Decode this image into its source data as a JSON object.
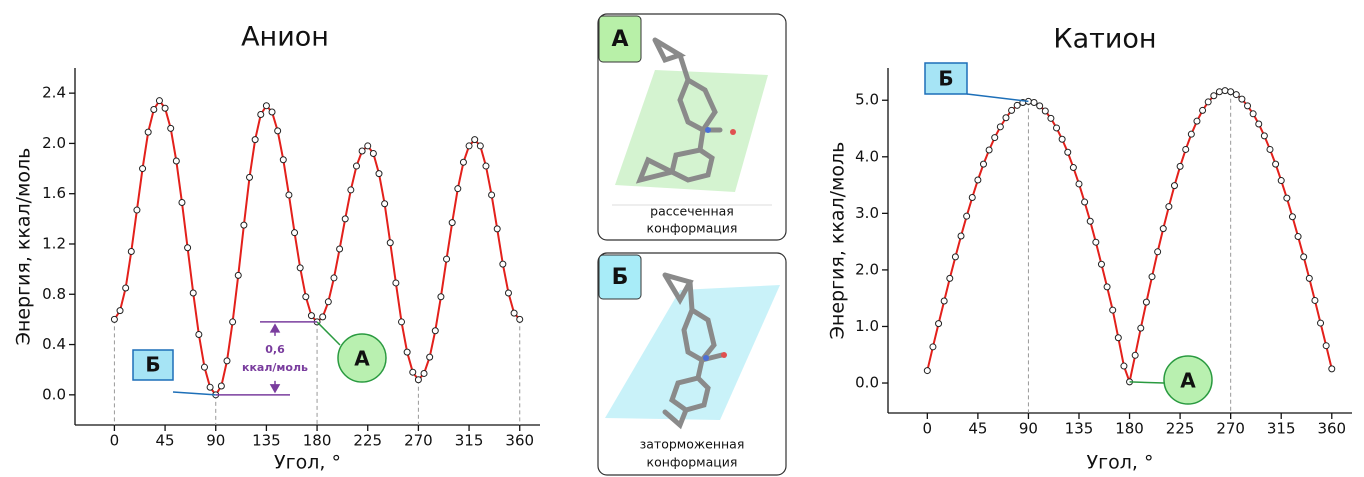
{
  "chart_data": [
    {
      "type": "line",
      "title": "Анион",
      "x_label": "Угол, °",
      "y_label": "Энергия, ккал/моль",
      "x": [
        0,
        5,
        10,
        15,
        20,
        25,
        30,
        35,
        40,
        45,
        50,
        55,
        60,
        65,
        70,
        75,
        80,
        85,
        90,
        95,
        100,
        105,
        110,
        115,
        120,
        125,
        130,
        135,
        140,
        145,
        150,
        155,
        160,
        165,
        170,
        175,
        180,
        185,
        190,
        195,
        200,
        205,
        210,
        215,
        220,
        225,
        230,
        235,
        240,
        245,
        250,
        255,
        260,
        265,
        270,
        275,
        280,
        285,
        290,
        295,
        300,
        305,
        310,
        315,
        320,
        325,
        330,
        335,
        340,
        345,
        350,
        355,
        360
      ],
      "series": [
        {
          "color": "#e3201b",
          "values": [
            0.6,
            0.67,
            0.85,
            1.14,
            1.47,
            1.8,
            2.09,
            2.27,
            2.34,
            2.28,
            2.12,
            1.86,
            1.53,
            1.17,
            0.81,
            0.48,
            0.22,
            0.06,
            0,
            0.07,
            0.27,
            0.58,
            0.95,
            1.35,
            1.73,
            2.03,
            2.23,
            2.3,
            2.25,
            2.1,
            1.87,
            1.59,
            1.29,
            1.01,
            0.78,
            0.63,
            0.58,
            0.62,
            0.74,
            0.93,
            1.16,
            1.4,
            1.63,
            1.82,
            1.94,
            1.98,
            1.92,
            1.76,
            1.52,
            1.21,
            0.89,
            0.58,
            0.34,
            0.18,
            0.12,
            0.17,
            0.3,
            0.51,
            0.78,
            1.08,
            1.37,
            1.64,
            1.85,
            1.98,
            2.03,
            1.98,
            1.82,
            1.59,
            1.32,
            1.04,
            0.81,
            0.65,
            0.6
          ]
        }
      ],
      "xlim": [
        -35,
        378
      ],
      "ylim": [
        -0.24,
        2.6
      ],
      "xticks": [
        0,
        45,
        90,
        135,
        180,
        225,
        270,
        315,
        360
      ],
      "yticks": [
        {
          "value": 0,
          "label": "0.0"
        },
        0.4,
        0.8,
        1.2,
        1.6,
        {
          "value": 2,
          "label": "2.0"
        },
        2.4
      ],
      "vlines": [
        0,
        90,
        180,
        270,
        360
      ],
      "annotations": [
        "Б",
        "А",
        "0,6",
        "ккал/моль"
      ]
    },
    {
      "type": "line",
      "title": "Катион",
      "x_label": "Угол, °",
      "y_label": "Энергия, ккал/моль",
      "x": [
        0,
        5,
        10,
        15,
        20,
        25,
        30,
        35,
        40,
        45,
        50,
        55,
        60,
        65,
        70,
        75,
        80,
        85,
        90,
        95,
        100,
        105,
        110,
        115,
        120,
        125,
        130,
        135,
        140,
        145,
        150,
        155,
        160,
        165,
        170,
        175,
        180,
        185,
        190,
        195,
        200,
        205,
        210,
        215,
        220,
        225,
        230,
        235,
        240,
        245,
        250,
        255,
        260,
        265,
        270,
        275,
        280,
        285,
        290,
        295,
        300,
        305,
        310,
        315,
        320,
        325,
        330,
        335,
        340,
        345,
        350,
        355,
        360
      ],
      "series": [
        {
          "color": "#e3201b",
          "values": [
            0.22,
            0.64,
            1.05,
            1.45,
            1.85,
            2.23,
            2.6,
            2.95,
            3.28,
            3.59,
            3.87,
            4.12,
            4.34,
            4.53,
            4.69,
            4.82,
            4.91,
            4.96,
            4.98,
            4.96,
            4.9,
            4.81,
            4.68,
            4.51,
            4.31,
            4.08,
            3.81,
            3.52,
            3.2,
            2.86,
            2.49,
            2.1,
            1.7,
            1.29,
            0.8,
            0.3,
            0.02,
            0.49,
            0.97,
            1.43,
            1.88,
            2.32,
            2.73,
            3.12,
            3.49,
            3.83,
            4.13,
            4.4,
            4.63,
            4.82,
            4.97,
            5.08,
            5.15,
            5.17,
            5.15,
            5.1,
            5.02,
            4.9,
            4.76,
            4.58,
            4.37,
            4.13,
            3.87,
            3.58,
            3.27,
            2.94,
            2.59,
            2.23,
            1.85,
            1.46,
            1.06,
            0.66,
            0.25
          ]
        }
      ],
      "xlim": [
        -35,
        378
      ],
      "ylim": [
        -0.53,
        5.57
      ],
      "xticks": [
        0,
        45,
        90,
        135,
        180,
        225,
        270,
        315,
        360
      ],
      "yticks": [
        {
          "value": 0,
          "label": "0.0"
        },
        {
          "value": 1,
          "label": "1.0"
        },
        {
          "value": 2,
          "label": "2.0"
        },
        {
          "value": 3,
          "label": "3.0"
        },
        {
          "value": 4,
          "label": "4.0"
        },
        {
          "value": 5,
          "label": "5.0"
        }
      ],
      "vlines": [
        90,
        270
      ],
      "annotations": [
        "Б",
        "А"
      ]
    }
  ],
  "conformations": [
    {
      "label": "А",
      "caption": [
        "рассеченная",
        "конформация"
      ]
    },
    {
      "label": "Б",
      "caption": [
        "заторможенная",
        "конформация"
      ]
    }
  ]
}
